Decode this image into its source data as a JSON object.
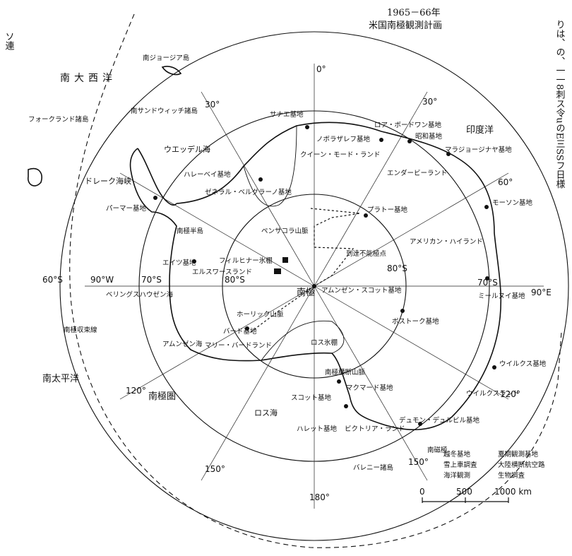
{
  "title": {
    "line1": "1965－66年",
    "line2": "米国南極観測計画"
  },
  "graticule": {
    "lat_60_w": "60°S",
    "lat_70_w": "70°S",
    "lat_80_w": "80°S",
    "lat_80_e": "80°S",
    "lat_70_e": "70°S",
    "lat_60_e": "90°E",
    "lon_0": "0°",
    "lon_30w": "30°",
    "lon_30e": "30°",
    "lon_60e": "60°",
    "lon_90w": "90°W",
    "lon_120w": "120°",
    "lon_120e": "120°",
    "lon_150w": "150°",
    "lon_150e": "150°",
    "lon_180": "180°"
  },
  "regions": {
    "south_atlantic": "南大西洋",
    "south_georgia": "南ジョージア島",
    "falkland": "フォークランド諸島",
    "south_sandwich": "南サンドウィッチ諸島",
    "drake": "ドレーク海峡",
    "weddell": "ウエッデル海",
    "queen_maud": "クイーン・モード・ランド",
    "enderby": "エンダービーランド",
    "indian_ocean": "印度洋",
    "american_highland": "アメリカン・ハイランド",
    "inaccessibility": "到達不能極点",
    "amundsen_scott": "アムンゼン・スコット基地",
    "pole": "南極",
    "ross_ice": "ロス氷棚",
    "ross_sea": "ロス海",
    "marie_byrd": "マリー・バードランド",
    "ellsworth": "エルスワースランド",
    "bellingshausen": "ベリングスハウゼン海",
    "amundsen_sea": "アムンゼン海",
    "victoria_land": "ビクトリア・ランド",
    "wilkes_land": "ウイルクスランド",
    "south_pacific": "南太平洋",
    "antarctic_circle": "南極圏",
    "balleny": "バレニー諸島",
    "south_magnetic_pole": "南磁極",
    "peninsula": "南極半島",
    "transantarctic": "南極横断山脈",
    "horlick": "ホーリック山脈",
    "pensacola": "ペンサコラ山脈",
    "filchner": "フィルヒナー氷棚",
    "convergence": "南極収束線"
  },
  "stations": {
    "sanae": "サナエ基地",
    "novolazarevskaya": "ノボラザレフ基地",
    "roi_baudouin": "ロア・ボードワン基地",
    "syowa": "昭和基地",
    "molodezhnaya": "マラジョージナヤ基地",
    "mawson": "モーソン基地",
    "halley_bay": "ハレーベイ基地",
    "belgrano": "ゼネラル・ベルグラーノ基地",
    "plateau": "プラトー基地",
    "palmer": "パーマー基地",
    "eights": "エイツ基地",
    "byrd": "バード基地",
    "mirny": "ミールヌイ基地",
    "vostok": "ボストーク基地",
    "wilkes": "ウイルクス基地",
    "mcmurdo": "マクマード基地",
    "scott": "スコット基地",
    "hallett": "ハレット基地",
    "dumont": "デュモン・デュルビル基地"
  },
  "legend": {
    "item1": "越冬基地",
    "item2": "夏期観測基地",
    "item3": "雪上車調査",
    "item4": "大陸横断航空路",
    "item5": "海洋観測",
    "item6": "生物調査"
  },
  "scale": {
    "zero": "0",
    "mid": "500",
    "max": "1000 km"
  },
  "margin": {
    "left_column": "ソ連",
    "right_column": "りは、の、一一8刺ス令uのE三SSフ日様"
  }
}
